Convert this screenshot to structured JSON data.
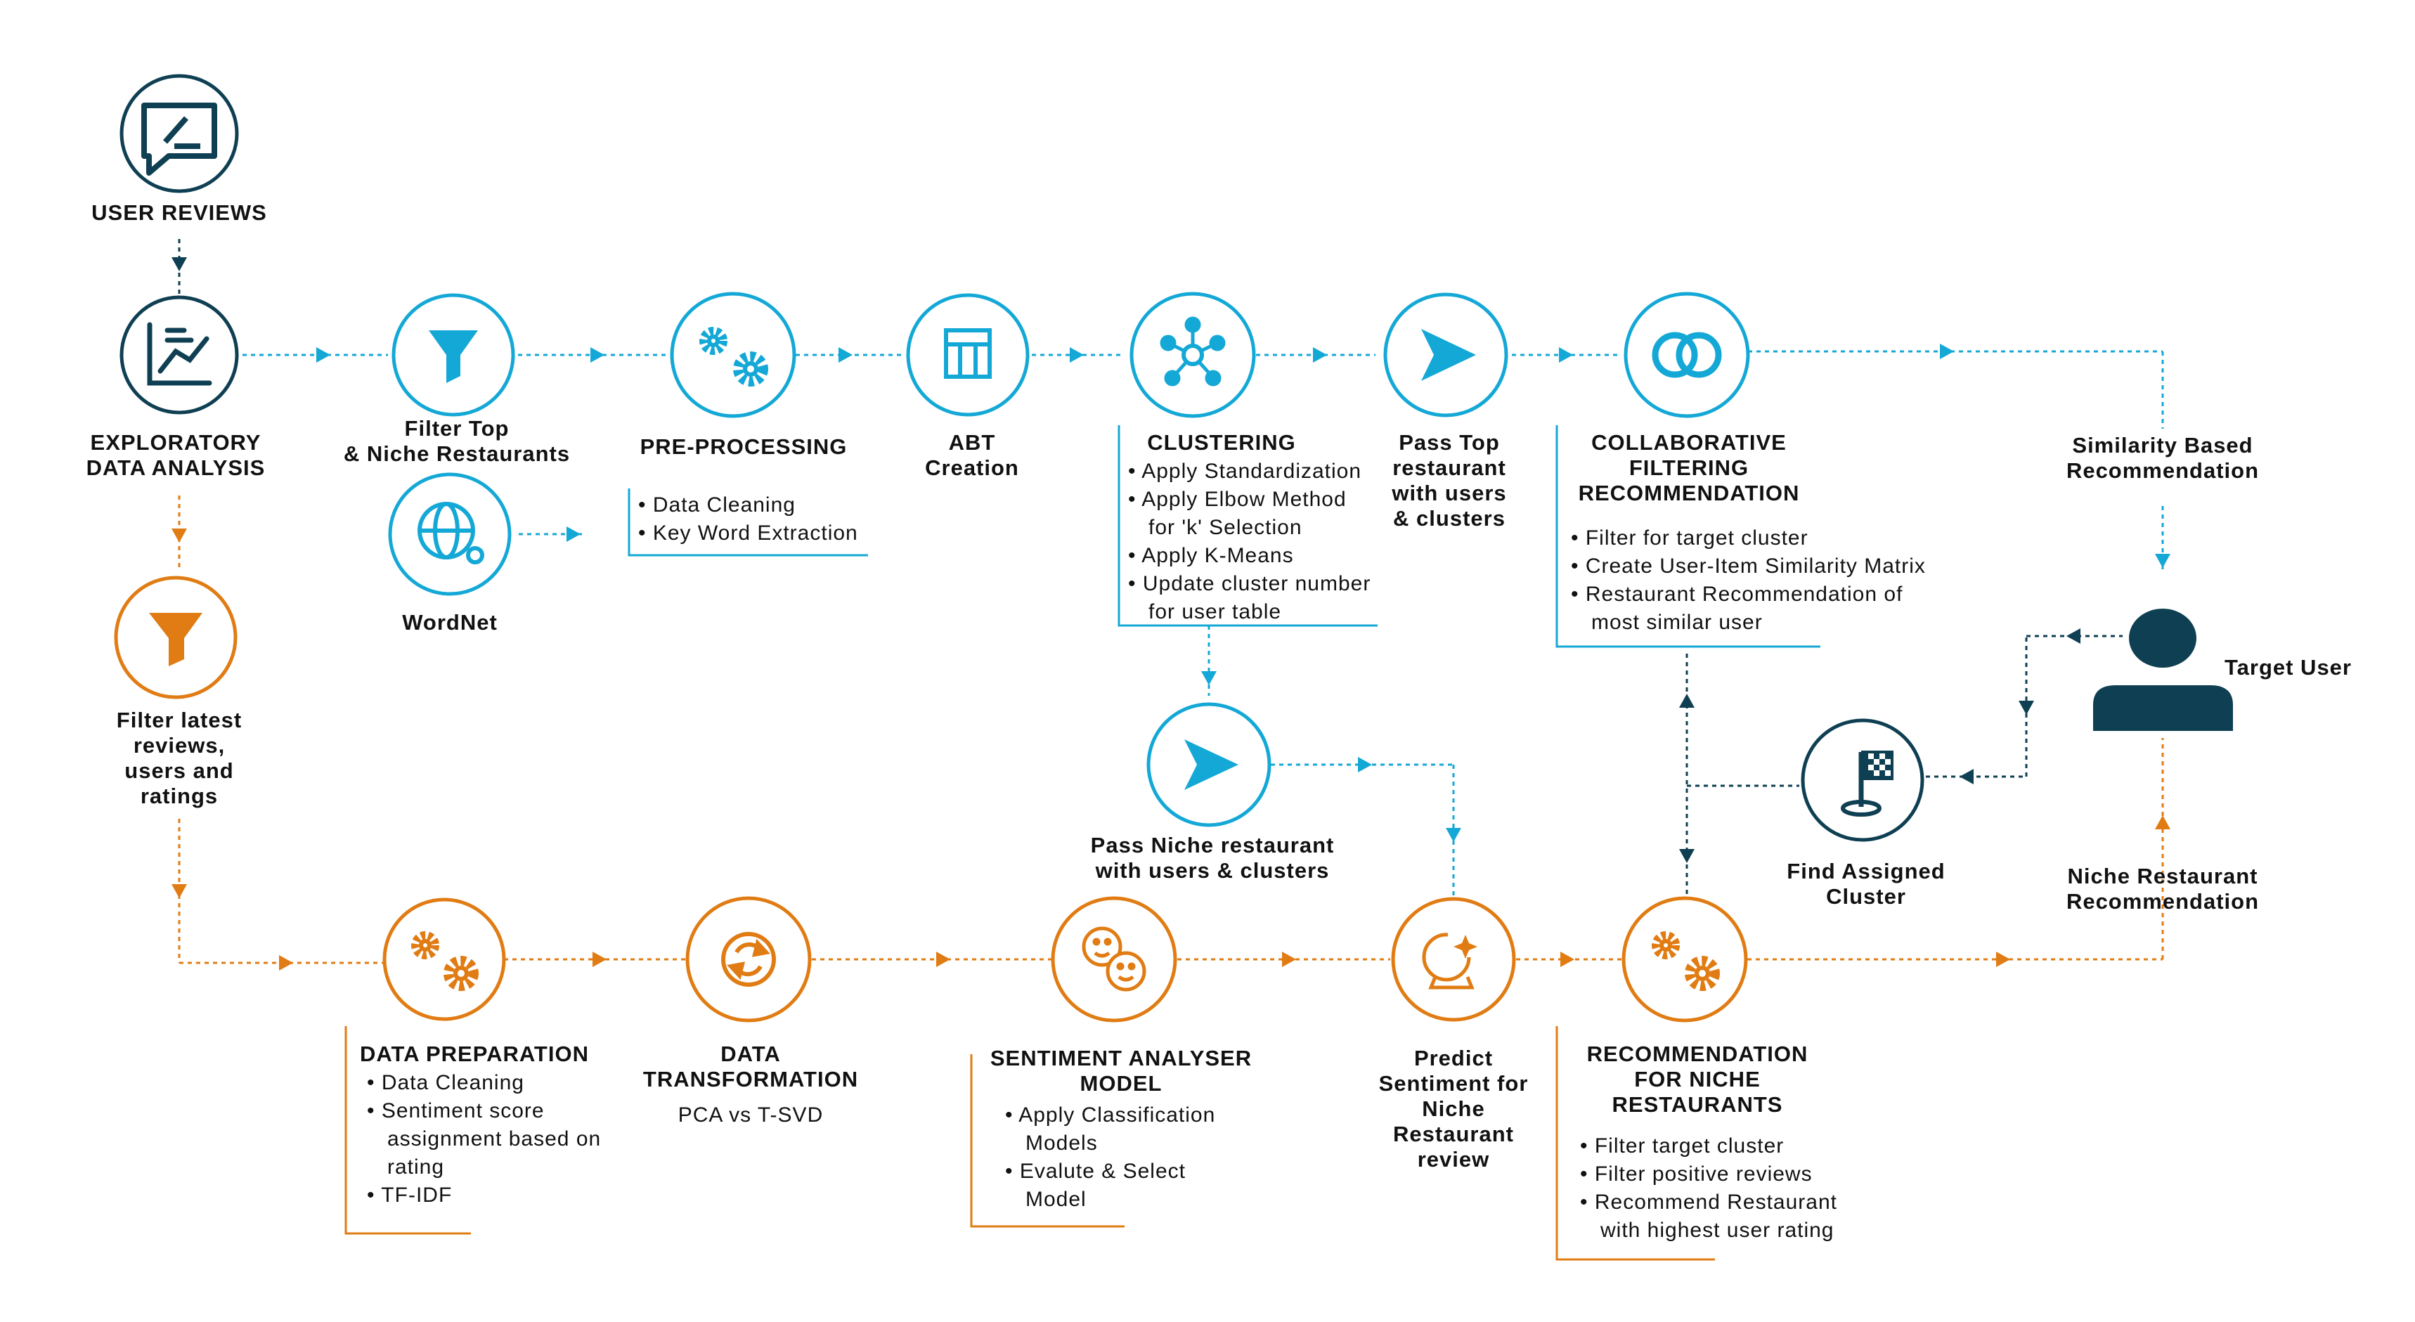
{
  "colors": {
    "blue": "#14a8d6",
    "orange": "#e07c13",
    "navy": "#0f3f52",
    "text": "#111111"
  },
  "top_flow": {
    "user_reviews": {
      "icon": "chat-pen-icon",
      "label": "USER REVIEWS"
    },
    "eda": {
      "icon": "line-chart-icon",
      "label": [
        "EXPLORATORY",
        "DATA ANALYSIS"
      ]
    },
    "filter_top": {
      "icon": "funnel-icon",
      "label": [
        "Filter Top",
        "& Niche Restaurants"
      ]
    },
    "wordnet": {
      "icon": "globe-icon",
      "label": "WordNet"
    },
    "preprocessing": {
      "icon": "gears-icon",
      "label": "PRE-PROCESSING",
      "bullets": [
        "Data Cleaning",
        "Key Word Extraction"
      ]
    },
    "abt": {
      "icon": "table-icon",
      "label": [
        "ABT",
        "Creation"
      ]
    },
    "clustering": {
      "icon": "network-icon",
      "label": "CLUSTERING",
      "bullets": [
        [
          "Apply Standardization"
        ],
        [
          "Apply Elbow Method",
          "for 'k' Selection"
        ],
        [
          "Apply K-Means"
        ],
        [
          "Update cluster number",
          "for user table"
        ]
      ]
    },
    "pass_top": {
      "icon": "send-icon",
      "label": [
        "Pass Top",
        "restaurant",
        "with users",
        "& clusters"
      ]
    },
    "collab": {
      "icon": "overlap-circles-icon",
      "label": [
        "COLLABORATIVE",
        "FILTERING",
        "RECOMMENDATION"
      ],
      "bullets": [
        [
          "Filter for target cluster"
        ],
        [
          "Create User-Item Similarity Matrix"
        ],
        [
          "Restaurant Recommendation of",
          "most similar user"
        ]
      ]
    },
    "similarity": {
      "label": [
        "Similarity Based",
        "Recommendation"
      ]
    },
    "target_user": {
      "icon": "user-icon",
      "label": "Target User"
    },
    "find_cluster": {
      "icon": "flag-icon",
      "label": [
        "Find Assigned",
        "Cluster"
      ]
    },
    "pass_niche": {
      "icon": "send-icon",
      "label": [
        "Pass Niche restaurant",
        "with users & clusters"
      ]
    }
  },
  "bottom_flow": {
    "filter_latest": {
      "icon": "funnel-icon",
      "label": [
        "Filter latest",
        "reviews,",
        "users and",
        "ratings"
      ]
    },
    "data_prep": {
      "icon": "gears-icon",
      "label": "DATA PREPARATION",
      "bullets": [
        [
          "Data Cleaning"
        ],
        [
          "Sentiment score",
          "assignment based on",
          "rating"
        ],
        [
          "TF-IDF"
        ]
      ]
    },
    "data_transform": {
      "icon": "refresh-coin-icon",
      "label": [
        "DATA",
        "TRANSFORMATION"
      ],
      "sub": "PCA vs T-SVD"
    },
    "sentiment_model": {
      "icon": "faces-icon",
      "label": [
        "SENTIMENT ANALYSER",
        "MODEL"
      ],
      "bullets": [
        [
          "Apply Classification",
          "Models"
        ],
        [
          "Evalute & Select",
          "Model"
        ]
      ]
    },
    "predict": {
      "icon": "crystal-ball-icon",
      "label": [
        "Predict",
        "Sentiment for",
        "Niche",
        "Restaurant",
        "review"
      ]
    },
    "reco_niche": {
      "icon": "gears-icon",
      "label": [
        "RECOMMENDATION",
        "FOR NICHE",
        "RESTAURANTS"
      ],
      "bullets": [
        [
          "Filter target cluster"
        ],
        [
          "Filter positive reviews"
        ],
        [
          "Recommend Restaurant",
          "with highest user rating"
        ]
      ]
    },
    "niche_reco": {
      "label": [
        "Niche Restaurant",
        "Recommendation"
      ]
    }
  }
}
